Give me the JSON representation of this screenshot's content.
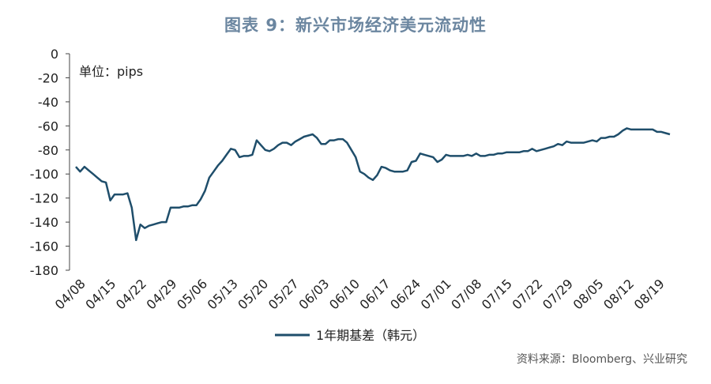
{
  "title": "图表 9：新兴市场经济美元流动性",
  "source": "资料来源：Bloomberg、兴业研究",
  "chart_data": {
    "type": "line",
    "unit_label": "单位：pips",
    "ylim": [
      -180,
      0
    ],
    "yticks": [
      0,
      -20,
      -40,
      -60,
      -80,
      -100,
      -120,
      -140,
      -160,
      -180
    ],
    "xtick_labels": [
      "04/08",
      "04/15",
      "04/22",
      "04/29",
      "05/06",
      "05/13",
      "05/20",
      "05/27",
      "06/03",
      "06/10",
      "06/17",
      "06/24",
      "07/01",
      "07/08",
      "07/15",
      "07/22",
      "07/29",
      "08/05",
      "08/12",
      "08/19"
    ],
    "grid": false,
    "legend_position": "bottom",
    "series": [
      {
        "name": "1年期基差（韩元）",
        "color": "#1f4e6b",
        "values": [
          -94,
          -98,
          -94,
          -97,
          -100,
          -103,
          -106,
          -107,
          -122,
          -117,
          -117,
          -117,
          -116,
          -128,
          -155,
          -142,
          -145,
          -143,
          -142,
          -141,
          -140,
          -140,
          -128,
          -128,
          -128,
          -127,
          -127,
          -126,
          -126,
          -121,
          -114,
          -103,
          -98,
          -93,
          -89,
          -84,
          -79,
          -80,
          -86,
          -85,
          -85,
          -84,
          -72,
          -76,
          -80,
          -81,
          -79,
          -76,
          -74,
          -74,
          -76,
          -73,
          -71,
          -69,
          -68,
          -67,
          -70,
          -75,
          -75,
          -72,
          -72,
          -71,
          -71,
          -74,
          -80,
          -86,
          -98,
          -100,
          -103,
          -105,
          -101,
          -94,
          -95,
          -97,
          -98,
          -98,
          -98,
          -97,
          -90,
          -89,
          -83,
          -84,
          -85,
          -86,
          -90,
          -88,
          -84,
          -85,
          -85,
          -85,
          -85,
          -84,
          -85,
          -83,
          -85,
          -85,
          -84,
          -84,
          -83,
          -83,
          -82,
          -82,
          -82,
          -82,
          -81,
          -81,
          -79,
          -81,
          -80,
          -79,
          -78,
          -77,
          -75,
          -76,
          -73,
          -74,
          -74,
          -74,
          -74,
          -73,
          -72,
          -73,
          -70,
          -70,
          -69,
          -69,
          -67,
          -64,
          -62,
          -63,
          -63,
          -63,
          -63,
          -63,
          -63,
          -65,
          -65,
          -66,
          -67
        ]
      }
    ]
  }
}
